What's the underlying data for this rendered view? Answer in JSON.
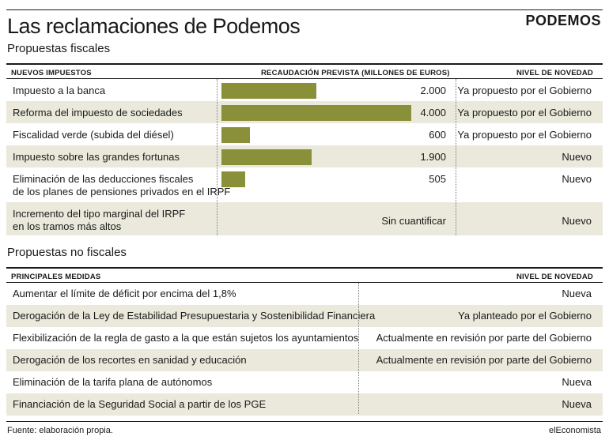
{
  "header": {
    "title": "Las reclamaciones de Podemos",
    "subtitle": "Propuestas fiscales",
    "logo": "PODEMOS"
  },
  "fiscal_table": {
    "col_medida": "NUEVOS IMPUESTOS",
    "col_recaudacion": "RECAUDACIÓN PREVISTA (MILLONES DE EUROS)",
    "col_novedad": "NIVEL DE NOVEDAD",
    "rows": [
      {
        "label": [
          "Impuesto a la banca"
        ],
        "value": 2000,
        "value_label": "2.000",
        "novedad": "Ya propuesto por el Gobierno",
        "shaded": false
      },
      {
        "label": [
          "Reforma del impuesto de sociedades"
        ],
        "value": 4000,
        "value_label": "4.000",
        "novedad": "Ya propuesto por el Gobierno",
        "shaded": true
      },
      {
        "label": [
          "Fiscalidad verde (subida del diésel)"
        ],
        "value": 600,
        "value_label": "600",
        "novedad": "Ya propuesto por el Gobierno",
        "shaded": false
      },
      {
        "label": [
          "Impuesto sobre las grandes fortunas"
        ],
        "value": 1900,
        "value_label": "1.900",
        "novedad": "Nuevo",
        "shaded": true
      },
      {
        "label": [
          "Eliminación de las deducciones fiscales",
          "de los planes de pensiones privados en el IRPF"
        ],
        "value": 505,
        "value_label": "505",
        "novedad": "Nuevo",
        "shaded": false
      },
      {
        "label": [
          "Incremento del tipo marginal del IRPF",
          "en los tramos más altos"
        ],
        "value": null,
        "value_label": "Sin cuantificar",
        "novedad": "Nuevo",
        "shaded": true
      }
    ]
  },
  "nonfiscal_section": {
    "subtitle": "Propuestas no fiscales",
    "col_medida": "PRINCIPALES MEDIDAS",
    "col_novedad": "NIVEL DE NOVEDAD",
    "rows": [
      {
        "label": "Aumentar el límite de déficit por encima del 1,8%",
        "novedad": "Nueva",
        "shaded": false
      },
      {
        "label": "Derogación de la Ley de Estabilidad Presupuestaria y Sostenibilidad Financiera",
        "novedad": "Ya planteado por el Gobierno",
        "shaded": true
      },
      {
        "label": "Flexibilización de la regla de gasto a la que están sujetos los ayuntamientos",
        "novedad": "Actualmente en revisión por parte del Gobierno",
        "shaded": false
      },
      {
        "label": "Derogación de los recortes en sanidad y educación",
        "novedad": "Actualmente en revisión por parte del Gobierno",
        "shaded": true
      },
      {
        "label": "Eliminación de la tarifa plana de autónomos",
        "novedad": "Nueva",
        "shaded": false
      },
      {
        "label": "Financiación de la Seguridad Social a partir de los PGE",
        "novedad": "Nueva",
        "shaded": true
      }
    ]
  },
  "footer": {
    "source": "Fuente: elaboración propia.",
    "brand": "elEconomista"
  },
  "colors": {
    "bar": "#8a8f3a",
    "row_shade": "#ebe9db",
    "rule": "#1a1a1a"
  },
  "chart_data": {
    "type": "bar",
    "orientation": "horizontal",
    "categories": [
      "Impuesto a la banca",
      "Reforma del impuesto de sociedades",
      "Fiscalidad verde (subida del diésel)",
      "Impuesto sobre las grandes fortunas",
      "Eliminación de las deducciones fiscales de los planes de pensiones privados en el IRPF",
      "Incremento del tipo marginal del IRPF en los tramos más altos"
    ],
    "values": [
      2000,
      4000,
      600,
      1900,
      505,
      null
    ],
    "value_labels": [
      "2.000",
      "4.000",
      "600",
      "1.900",
      "505",
      "Sin cuantificar"
    ],
    "xlabel": "RECAUDACIÓN PREVISTA (MILLONES DE EUROS)",
    "xlim": [
      0,
      4000
    ]
  }
}
